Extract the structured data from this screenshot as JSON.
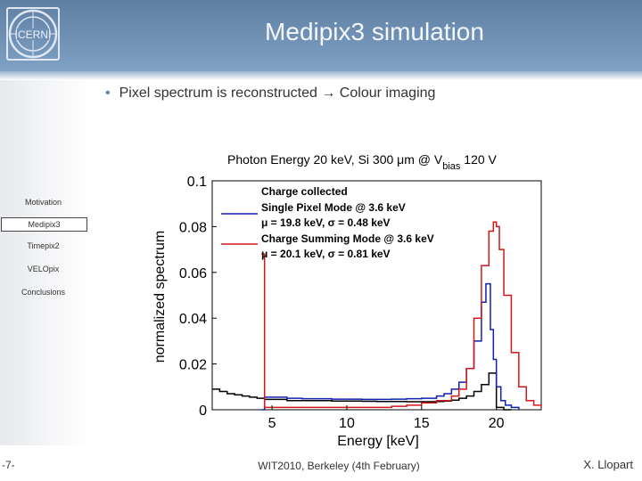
{
  "slide": {
    "title": "Medipix3 simulation",
    "bullet": "Pixel spectrum is reconstructed → Colour imaging",
    "logo_text": "CERN"
  },
  "sidebar": {
    "items": [
      {
        "label": "Motivation",
        "active": false
      },
      {
        "label": "Medipix3",
        "active": true
      },
      {
        "label": "Timepix2",
        "active": false
      },
      {
        "label": "VELOpix",
        "active": false
      },
      {
        "label": "Conclusions",
        "active": false
      }
    ]
  },
  "footer": {
    "page": "-7-",
    "event": "WIT2010, Berkeley (4th February)",
    "author": "X. Llopart"
  },
  "colors": {
    "header": "#6f90b5",
    "accent": "#5f7fa3",
    "blue_series": "#1020b0",
    "red_series": "#d01818",
    "black_series": "#000000"
  },
  "chart_data": {
    "type": "line",
    "title_parts": [
      "Photon Energy 20 keV, Si 300 μm @ V",
      "bias",
      " 120 V"
    ],
    "xlabel": "Energy [keV]",
    "ylabel": "normalized spectrum",
    "xlim": [
      1,
      23
    ],
    "ylim": [
      0,
      0.1
    ],
    "xticks": [
      5,
      10,
      15,
      20
    ],
    "yticks": [
      0,
      0.02,
      0.04,
      0.06,
      0.08,
      0.1
    ],
    "ytick_labels": [
      "0",
      "0.02",
      "0.04",
      "0.06",
      "0.08",
      "0.1"
    ],
    "legend": {
      "position": "top-left",
      "header": "Charge collected",
      "entries": [
        {
          "series": "Single Pixel Mode",
          "line1": "Single Pixel Mode @ 3.6 keV",
          "line2": "μ = 19.8 keV, σ = 0.48 keV"
        },
        {
          "series": "Charge Summing Mode",
          "line1": "Charge Summing Mode @ 3.6 keV",
          "line2": "μ = 20.1 keV, σ = 0.81 keV"
        }
      ]
    },
    "series": [
      {
        "name": "Charge collected",
        "color": "#000000",
        "x": [
          1,
          1.5,
          2,
          2.5,
          3,
          3.5,
          4,
          4.5,
          5,
          6,
          7,
          8,
          9,
          10,
          11,
          12,
          13,
          14,
          15,
          16,
          16.5,
          17,
          17.5,
          18,
          18.5,
          19,
          19.5,
          20,
          20.5,
          21
        ],
        "y": [
          0.009,
          0.008,
          0.007,
          0.0065,
          0.006,
          0.0055,
          0.005,
          0.0045,
          0.0045,
          0.004,
          0.004,
          0.004,
          0.0038,
          0.0038,
          0.0037,
          0.0036,
          0.0036,
          0.0035,
          0.0035,
          0.0036,
          0.0038,
          0.0042,
          0.005,
          0.006,
          0.008,
          0.011,
          0.016,
          0.001,
          0,
          0
        ]
      },
      {
        "name": "Single Pixel Mode",
        "color": "#1020b0",
        "x": [
          4.3,
          4.5,
          5,
          6,
          7,
          8,
          9,
          10,
          11,
          12,
          13,
          14,
          15,
          16,
          16.5,
          17,
          17.5,
          18,
          18.5,
          19,
          19.3,
          19.6,
          19.8,
          20,
          20.3,
          20.6,
          21,
          21.5
        ],
        "y": [
          0,
          0.0055,
          0.0055,
          0.005,
          0.0048,
          0.0048,
          0.0046,
          0.0046,
          0.0045,
          0.0045,
          0.0046,
          0.0048,
          0.005,
          0.006,
          0.007,
          0.009,
          0.012,
          0.018,
          0.03,
          0.047,
          0.055,
          0.035,
          0.022,
          0.01,
          0.004,
          0.002,
          0.001,
          0
        ]
      },
      {
        "name": "Charge Summing Mode",
        "color": "#d01818",
        "x": [
          4.3,
          4.4,
          4.5,
          5,
          6,
          7,
          8,
          9,
          10,
          11,
          12,
          13,
          14,
          15,
          16,
          17,
          17.5,
          18,
          18.5,
          19,
          19.5,
          19.8,
          20,
          20.2,
          20.5,
          21,
          21.5,
          22,
          22.5,
          23
        ],
        "y": [
          0.068,
          0.068,
          0.001,
          0.001,
          0.001,
          0.001,
          0.001,
          0.001,
          0.001,
          0.001,
          0.001,
          0.0015,
          0.002,
          0.003,
          0.004,
          0.006,
          0.009,
          0.018,
          0.04,
          0.063,
          0.078,
          0.082,
          0.08,
          0.07,
          0.05,
          0.025,
          0.01,
          0.004,
          0.002,
          0.001
        ]
      }
    ]
  }
}
